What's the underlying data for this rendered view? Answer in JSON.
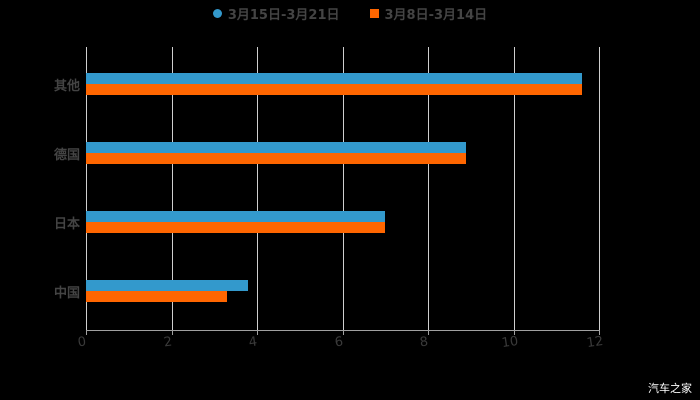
{
  "chart_data": {
    "type": "bar",
    "orientation": "horizontal",
    "title": "",
    "xlabel": "",
    "ylabel": "",
    "xlim": [
      0,
      12
    ],
    "x_ticks": [
      "0",
      "2",
      "4",
      "6",
      "8",
      "10",
      "12"
    ],
    "categories": [
      "其他",
      "德国",
      "日本",
      "中国"
    ],
    "series": [
      {
        "name": "3月15日-3月21日",
        "color": "#3399cc",
        "values": [
          11.6,
          8.9,
          7.0,
          3.8
        ]
      },
      {
        "name": "3月8日-3月14日",
        "color": "#ff6600",
        "values": [
          11.6,
          8.9,
          7.0,
          3.3
        ]
      }
    ],
    "grid": "vertical",
    "legend_position": "top"
  },
  "legend": {
    "items": [
      {
        "label": "3月15日-3月21日",
        "color": "#3399cc",
        "shape": "circle"
      },
      {
        "label": "3月8日-3月14日",
        "color": "#ff6600",
        "shape": "square"
      }
    ]
  },
  "watermark": "汽车之家"
}
